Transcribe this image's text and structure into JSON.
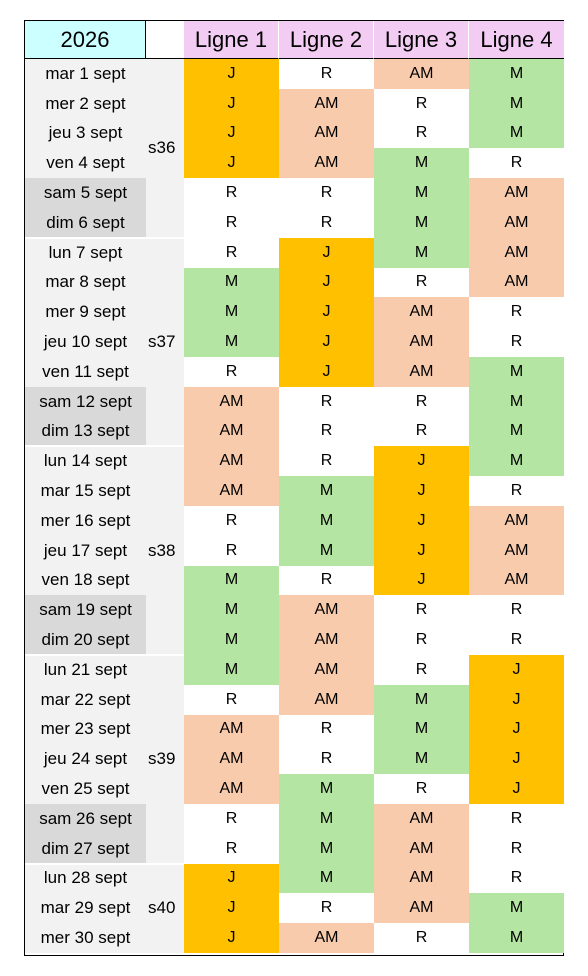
{
  "year": "2026",
  "lines": [
    "Ligne 1",
    "Ligne 2",
    "Ligne 3",
    "Ligne 4"
  ],
  "colors": {
    "year_bg": "#ccffff",
    "line_header_bg": "#f2ccf2",
    "date_weekday_bg": "#f2f2f2",
    "date_weekend_bg": "#d9d9d9",
    "week_bg": "#f2f2f2",
    "J": "#ffc000",
    "AM": "#f8cbad",
    "M": "#b4e5a2",
    "R": "#ffffff"
  },
  "weeks": [
    {
      "label": "s36",
      "days": 6
    },
    {
      "label": "s37",
      "days": 7
    },
    {
      "label": "s38",
      "days": 7
    },
    {
      "label": "s39",
      "days": 7
    },
    {
      "label": "s40",
      "days": 3
    }
  ],
  "rows": [
    {
      "date": "mar 1 sept",
      "weekend": false,
      "shifts": [
        "J",
        "R",
        "AM",
        "M"
      ]
    },
    {
      "date": "mer 2 sept",
      "weekend": false,
      "shifts": [
        "J",
        "AM",
        "R",
        "M"
      ]
    },
    {
      "date": "jeu 3 sept",
      "weekend": false,
      "shifts": [
        "J",
        "AM",
        "R",
        "M"
      ]
    },
    {
      "date": "ven 4 sept",
      "weekend": false,
      "shifts": [
        "J",
        "AM",
        "M",
        "R"
      ]
    },
    {
      "date": "sam 5 sept",
      "weekend": true,
      "shifts": [
        "R",
        "R",
        "M",
        "AM"
      ]
    },
    {
      "date": "dim 6 sept",
      "weekend": true,
      "shifts": [
        "R",
        "R",
        "M",
        "AM"
      ]
    },
    {
      "date": "lun 7 sept",
      "weekend": false,
      "shifts": [
        "R",
        "J",
        "M",
        "AM"
      ]
    },
    {
      "date": "mar 8 sept",
      "weekend": false,
      "shifts": [
        "M",
        "J",
        "R",
        "AM"
      ]
    },
    {
      "date": "mer 9 sept",
      "weekend": false,
      "shifts": [
        "M",
        "J",
        "AM",
        "R"
      ]
    },
    {
      "date": "jeu 10 sept",
      "weekend": false,
      "shifts": [
        "M",
        "J",
        "AM",
        "R"
      ]
    },
    {
      "date": "ven 11 sept",
      "weekend": false,
      "shifts": [
        "R",
        "J",
        "AM",
        "M"
      ]
    },
    {
      "date": "sam 12 sept",
      "weekend": true,
      "shifts": [
        "AM",
        "R",
        "R",
        "M"
      ]
    },
    {
      "date": "dim 13 sept",
      "weekend": true,
      "shifts": [
        "AM",
        "R",
        "R",
        "M"
      ]
    },
    {
      "date": "lun 14 sept",
      "weekend": false,
      "shifts": [
        "AM",
        "R",
        "J",
        "M"
      ]
    },
    {
      "date": "mar 15 sept",
      "weekend": false,
      "shifts": [
        "AM",
        "M",
        "J",
        "R"
      ]
    },
    {
      "date": "mer 16 sept",
      "weekend": false,
      "shifts": [
        "R",
        "M",
        "J",
        "AM"
      ]
    },
    {
      "date": "jeu 17 sept",
      "weekend": false,
      "shifts": [
        "R",
        "M",
        "J",
        "AM"
      ]
    },
    {
      "date": "ven 18 sept",
      "weekend": false,
      "shifts": [
        "M",
        "R",
        "J",
        "AM"
      ]
    },
    {
      "date": "sam 19 sept",
      "weekend": true,
      "shifts": [
        "M",
        "AM",
        "R",
        "R"
      ]
    },
    {
      "date": "dim 20 sept",
      "weekend": true,
      "shifts": [
        "M",
        "AM",
        "R",
        "R"
      ]
    },
    {
      "date": "lun 21 sept",
      "weekend": false,
      "shifts": [
        "M",
        "AM",
        "R",
        "J"
      ]
    },
    {
      "date": "mar 22 sept",
      "weekend": false,
      "shifts": [
        "R",
        "AM",
        "M",
        "J"
      ]
    },
    {
      "date": "mer 23 sept",
      "weekend": false,
      "shifts": [
        "AM",
        "R",
        "M",
        "J"
      ]
    },
    {
      "date": "jeu 24 sept",
      "weekend": false,
      "shifts": [
        "AM",
        "R",
        "M",
        "J"
      ]
    },
    {
      "date": "ven 25 sept",
      "weekend": false,
      "shifts": [
        "AM",
        "M",
        "R",
        "J"
      ]
    },
    {
      "date": "sam 26 sept",
      "weekend": true,
      "shifts": [
        "R",
        "M",
        "AM",
        "R"
      ]
    },
    {
      "date": "dim 27 sept",
      "weekend": true,
      "shifts": [
        "R",
        "M",
        "AM",
        "R"
      ]
    },
    {
      "date": "lun 28 sept",
      "weekend": false,
      "shifts": [
        "J",
        "M",
        "AM",
        "R"
      ]
    },
    {
      "date": "mar 29 sept",
      "weekend": false,
      "shifts": [
        "J",
        "R",
        "AM",
        "M"
      ]
    },
    {
      "date": "mer 30 sept",
      "weekend": false,
      "shifts": [
        "J",
        "AM",
        "R",
        "M"
      ]
    }
  ]
}
